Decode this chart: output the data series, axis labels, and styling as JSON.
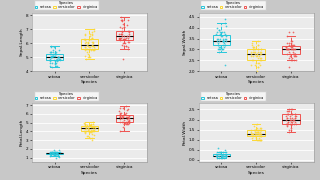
{
  "species": [
    "setosa",
    "versicolor",
    "virginica"
  ],
  "species_colors": [
    "#26C6DA",
    "#FDD835",
    "#EF5350"
  ],
  "panels": [
    {
      "ylabel": "Sepal.Length",
      "ylim": [
        4.0,
        8.2
      ],
      "yticks": [
        5,
        6,
        7,
        8
      ]
    },
    {
      "ylabel": "Sepal.Width",
      "ylim": [
        2.0,
        4.7
      ],
      "yticks": [
        2.5,
        3.0,
        3.5,
        4.0,
        4.5
      ]
    },
    {
      "ylabel": "Petal.Length",
      "ylim": [
        0.5,
        7.2
      ],
      "yticks": [
        2,
        4,
        6
      ]
    },
    {
      "ylabel": "Petal.Width",
      "ylim": [
        -0.1,
        2.8
      ],
      "yticks": [
        0.5,
        1.0,
        1.5,
        2.0,
        2.5
      ]
    }
  ],
  "xlabel": "Species",
  "legend_title": "Species",
  "fig_facecolor": "#FFFFFF",
  "ax_facecolor": "#EBEBEB",
  "grid_color": "#FFFFFF",
  "outer_facecolor": "#C8C8C8",
  "iris_data": {
    "setosa": {
      "Sepal.Length": [
        5.1,
        4.9,
        4.7,
        4.6,
        5.0,
        5.4,
        4.6,
        5.0,
        4.4,
        4.9,
        5.4,
        4.8,
        4.8,
        4.3,
        5.8,
        5.7,
        5.4,
        5.1,
        5.7,
        5.1,
        5.4,
        5.1,
        4.6,
        5.1,
        4.8,
        5.0,
        5.0,
        5.2,
        5.2,
        4.7,
        4.8,
        5.4,
        5.2,
        5.5,
        4.9,
        5.0,
        5.5,
        4.9,
        4.4,
        5.1,
        5.0,
        4.5,
        4.4,
        5.0,
        5.1,
        4.8,
        5.1,
        4.6,
        5.3,
        5.0
      ],
      "Sepal.Width": [
        3.5,
        3.0,
        3.2,
        3.1,
        3.6,
        3.9,
        3.4,
        3.4,
        2.9,
        3.1,
        3.7,
        3.4,
        3.0,
        3.0,
        4.0,
        4.4,
        3.9,
        3.5,
        3.8,
        3.8,
        3.4,
        3.7,
        3.6,
        3.3,
        3.4,
        3.0,
        3.4,
        3.5,
        3.4,
        3.2,
        3.1,
        3.4,
        4.1,
        4.2,
        3.1,
        3.2,
        3.5,
        3.6,
        3.0,
        3.4,
        3.5,
        2.3,
        3.2,
        3.5,
        3.8,
        3.0,
        3.8,
        3.2,
        3.7,
        3.3
      ],
      "Petal.Length": [
        1.4,
        1.4,
        1.3,
        1.5,
        1.4,
        1.7,
        1.4,
        1.5,
        1.4,
        1.5,
        1.5,
        1.6,
        1.4,
        1.1,
        1.2,
        1.5,
        1.3,
        1.4,
        1.7,
        1.5,
        1.7,
        1.5,
        1.0,
        1.7,
        1.9,
        1.6,
        1.6,
        1.5,
        1.4,
        1.6,
        1.6,
        1.5,
        1.5,
        1.4,
        1.5,
        1.2,
        1.3,
        1.4,
        1.3,
        1.5,
        1.3,
        1.3,
        1.3,
        1.6,
        1.9,
        1.4,
        1.6,
        1.4,
        1.5,
        1.4
      ],
      "Petal.Width": [
        0.2,
        0.2,
        0.2,
        0.2,
        0.2,
        0.4,
        0.3,
        0.2,
        0.2,
        0.1,
        0.2,
        0.2,
        0.1,
        0.1,
        0.2,
        0.4,
        0.4,
        0.3,
        0.3,
        0.3,
        0.2,
        0.4,
        0.2,
        0.5,
        0.2,
        0.2,
        0.4,
        0.2,
        0.2,
        0.2,
        0.2,
        0.4,
        0.1,
        0.2,
        0.2,
        0.2,
        0.2,
        0.1,
        0.2,
        0.2,
        0.3,
        0.3,
        0.2,
        0.6,
        0.4,
        0.3,
        0.2,
        0.2,
        0.2,
        0.2
      ]
    },
    "versicolor": {
      "Sepal.Length": [
        7.0,
        6.4,
        6.9,
        5.5,
        6.5,
        5.7,
        6.3,
        4.9,
        6.6,
        5.2,
        5.0,
        5.9,
        6.0,
        6.1,
        5.6,
        6.7,
        5.6,
        5.8,
        6.2,
        5.6,
        5.9,
        6.1,
        6.3,
        6.1,
        6.4,
        6.6,
        6.8,
        6.7,
        6.0,
        5.7,
        5.5,
        5.5,
        5.8,
        6.0,
        5.4,
        6.0,
        6.7,
        6.3,
        5.6,
        5.5,
        5.5,
        6.1,
        5.8,
        5.0,
        5.6,
        5.7,
        5.7,
        6.2,
        5.1,
        5.7
      ],
      "Sepal.Width": [
        3.2,
        3.2,
        3.1,
        2.3,
        2.8,
        2.8,
        3.3,
        2.4,
        2.9,
        2.7,
        2.0,
        3.0,
        2.2,
        2.9,
        2.9,
        3.1,
        3.0,
        2.7,
        2.2,
        2.5,
        3.2,
        2.8,
        2.5,
        2.8,
        2.9,
        3.0,
        2.8,
        3.0,
        2.9,
        2.6,
        2.4,
        2.4,
        2.7,
        2.7,
        3.0,
        3.4,
        3.1,
        2.3,
        3.0,
        2.5,
        2.6,
        3.0,
        2.6,
        2.3,
        2.7,
        3.0,
        2.9,
        2.9,
        2.5,
        2.8
      ],
      "Petal.Length": [
        4.7,
        4.5,
        4.9,
        4.0,
        4.6,
        4.5,
        4.7,
        3.3,
        4.6,
        3.9,
        3.5,
        4.2,
        4.0,
        4.7,
        3.6,
        4.4,
        4.5,
        4.1,
        4.5,
        3.9,
        4.8,
        4.0,
        4.9,
        4.7,
        4.3,
        4.4,
        4.8,
        5.0,
        4.5,
        3.5,
        3.8,
        3.7,
        3.9,
        5.1,
        4.5,
        4.5,
        4.7,
        4.4,
        4.1,
        4.0,
        4.4,
        4.6,
        4.0,
        3.3,
        4.2,
        4.2,
        4.2,
        4.3,
        3.0,
        4.1
      ],
      "Petal.Width": [
        1.4,
        1.5,
        1.5,
        1.3,
        1.5,
        1.3,
        1.6,
        1.0,
        1.3,
        1.4,
        1.0,
        1.5,
        1.0,
        1.4,
        1.3,
        1.4,
        1.5,
        1.0,
        1.5,
        1.1,
        1.8,
        1.3,
        1.5,
        1.2,
        1.3,
        1.4,
        1.4,
        1.7,
        1.5,
        1.0,
        1.1,
        1.0,
        1.2,
        1.6,
        1.5,
        1.6,
        1.5,
        1.3,
        1.3,
        1.3,
        1.2,
        1.4,
        1.2,
        1.0,
        1.3,
        1.2,
        1.3,
        1.3,
        1.1,
        1.3
      ]
    },
    "virginica": {
      "Sepal.Length": [
        6.3,
        5.8,
        7.1,
        6.3,
        6.5,
        7.6,
        4.9,
        7.3,
        6.7,
        7.2,
        6.5,
        6.4,
        6.8,
        5.7,
        5.8,
        6.4,
        6.5,
        7.7,
        7.7,
        6.0,
        6.9,
        5.6,
        7.7,
        6.3,
        6.7,
        7.2,
        6.2,
        6.1,
        6.4,
        7.2,
        7.4,
        7.9,
        6.4,
        6.3,
        6.1,
        7.7,
        6.3,
        6.4,
        6.0,
        6.9,
        6.7,
        6.9,
        5.8,
        6.8,
        6.7,
        6.7,
        6.3,
        6.5,
        6.2,
        5.9
      ],
      "Sepal.Width": [
        3.3,
        2.7,
        3.0,
        2.9,
        3.0,
        3.0,
        2.5,
        2.9,
        2.5,
        3.6,
        3.2,
        2.7,
        3.0,
        2.5,
        2.8,
        3.2,
        3.0,
        3.8,
        2.6,
        2.2,
        3.2,
        2.8,
        2.8,
        2.7,
        3.3,
        3.2,
        2.8,
        3.0,
        2.8,
        3.0,
        2.8,
        3.8,
        2.8,
        2.8,
        2.6,
        3.0,
        3.4,
        3.1,
        3.0,
        3.1,
        3.1,
        3.1,
        2.7,
        3.2,
        3.3,
        3.0,
        2.5,
        3.0,
        3.4,
        3.0
      ],
      "Petal.Length": [
        6.0,
        5.1,
        5.9,
        5.6,
        5.8,
        6.6,
        4.5,
        6.3,
        5.8,
        6.1,
        5.1,
        5.3,
        5.5,
        5.0,
        5.1,
        5.3,
        5.5,
        6.7,
        6.9,
        5.0,
        5.7,
        4.9,
        6.7,
        4.9,
        5.7,
        6.0,
        4.8,
        4.9,
        5.6,
        5.8,
        6.1,
        6.4,
        5.6,
        5.1,
        5.6,
        6.1,
        5.6,
        5.5,
        4.8,
        5.4,
        5.6,
        5.1,
        5.9,
        5.7,
        5.2,
        5.0,
        5.2,
        5.4,
        5.1,
        4.1
      ],
      "Petal.Width": [
        2.5,
        1.9,
        2.1,
        1.8,
        2.2,
        2.1,
        1.7,
        1.8,
        1.8,
        2.5,
        2.0,
        1.9,
        2.1,
        2.0,
        2.4,
        2.3,
        1.8,
        2.2,
        2.3,
        1.5,
        2.3,
        2.0,
        2.0,
        1.8,
        2.1,
        1.8,
        1.8,
        2.1,
        1.6,
        1.9,
        2.0,
        2.2,
        1.5,
        1.4,
        2.3,
        2.4,
        1.8,
        1.8,
        2.1,
        2.4,
        2.3,
        1.9,
        2.3,
        2.5,
        2.3,
        1.9,
        2.0,
        2.3,
        1.8,
        2.2
      ]
    }
  }
}
